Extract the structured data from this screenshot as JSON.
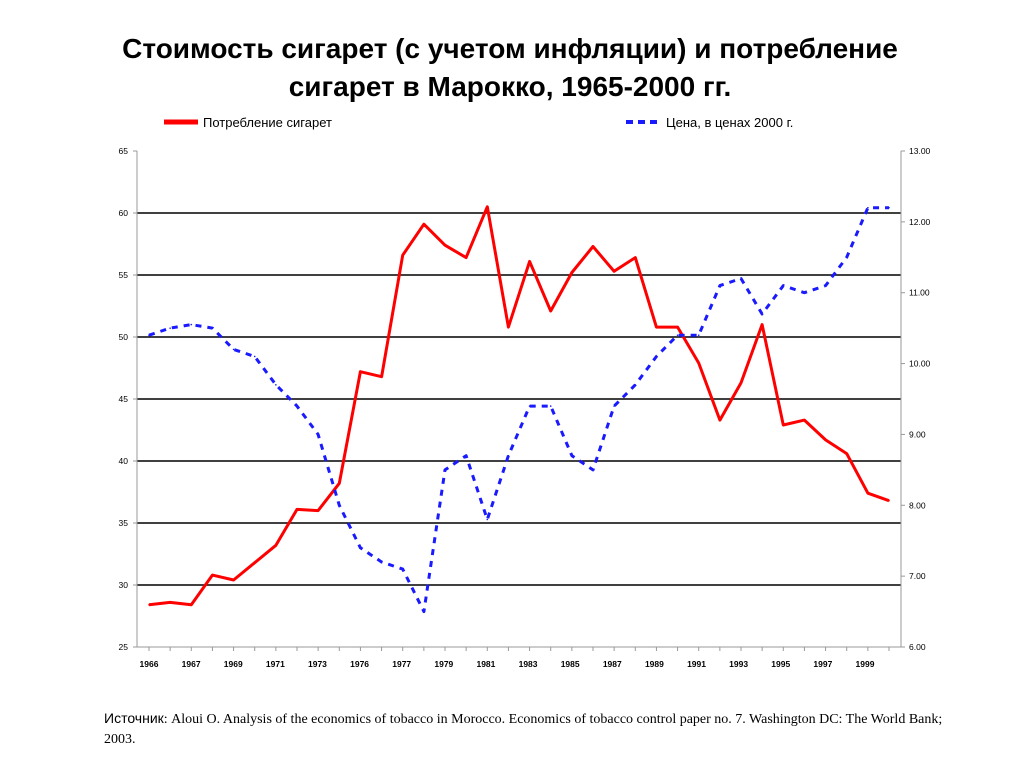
{
  "slide": {
    "title_line1": "Стоимость сигарет (с учетом инфляции) и потребление",
    "title_line2": "сигарет в Марокко, 1965-2000 гг."
  },
  "source": {
    "label": "Источник",
    "text": ": Aloui O. Analysis of the economics of tobacco in Morocco. Economics of tobacco control paper no. 7. Washington DC: The World Bank; 2003."
  },
  "chart_data": {
    "type": "line",
    "title": "",
    "legend": {
      "placement": "top",
      "entries": [
        "Потребление сигарет",
        "Цена, в ценах 2000 г."
      ]
    },
    "x_tick_labels": [
      "1966",
      "1967",
      "1969",
      "1971",
      "1973",
      "1976",
      "1977",
      "1979",
      "1981",
      "1983",
      "1985",
      "1987",
      "1989",
      "1991",
      "1993",
      "1995",
      "1997",
      "1999"
    ],
    "y_left": {
      "ticks": [
        "25",
        "30",
        "35",
        "40",
        "45",
        "50",
        "55",
        "60",
        "65"
      ],
      "range": [
        25,
        65
      ]
    },
    "y_right": {
      "ticks": [
        "6.00",
        "7.00",
        "8.00",
        "9.00",
        "10.00",
        "11.00",
        "12.00",
        "13.00"
      ],
      "range": [
        6,
        13
      ]
    },
    "grid": true,
    "x": [
      1965,
      1966,
      1967,
      1968,
      1969,
      1970,
      1971,
      1972,
      1973,
      1974,
      1975,
      1976,
      1977,
      1978,
      1979,
      1980,
      1981,
      1982,
      1983,
      1984,
      1985,
      1986,
      1987,
      1988,
      1989,
      1990,
      1991,
      1992,
      1993,
      1994,
      1995,
      1996,
      1997,
      1998,
      1999,
      2000
    ],
    "series": [
      {
        "name": "Потребление сигарет",
        "axis": "left",
        "color": "#ff0000",
        "style": "solid",
        "values": [
          28.4,
          28.6,
          28.4,
          30.8,
          30.4,
          31.8,
          33.2,
          36.1,
          36.0,
          38.2,
          47.2,
          46.8,
          56.6,
          59.1,
          57.4,
          56.4,
          60.5,
          50.8,
          56.1,
          52.1,
          55.2,
          57.3,
          55.3,
          56.4,
          50.8,
          50.8,
          47.9,
          43.3,
          46.3,
          51.0,
          42.9,
          43.3,
          41.7,
          40.6,
          37.4,
          36.8
        ]
      },
      {
        "name": "Цена, в ценах 2000 г.",
        "axis": "right",
        "color": "#1a1aff",
        "style": "dashed",
        "values": [
          10.4,
          10.5,
          10.55,
          10.5,
          10.2,
          10.1,
          9.7,
          9.4,
          9.0,
          8.0,
          7.4,
          7.2,
          7.1,
          6.5,
          8.5,
          8.7,
          7.8,
          8.7,
          9.4,
          9.4,
          8.7,
          8.5,
          9.4,
          9.7,
          10.1,
          10.4,
          10.4,
          11.1,
          11.2,
          10.7,
          11.1,
          11.0,
          11.1,
          11.5,
          12.2,
          12.2
        ]
      }
    ]
  }
}
